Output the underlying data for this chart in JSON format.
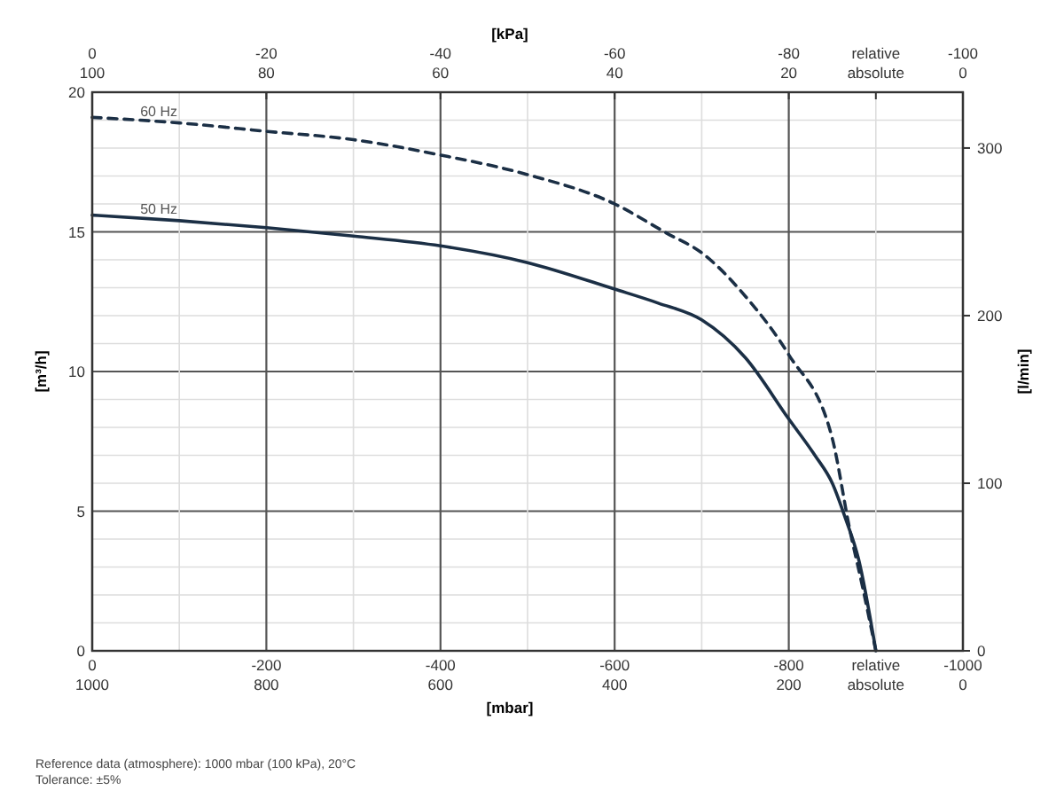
{
  "chart_data": {
    "type": "line",
    "xlabel": "[mbar]",
    "x2label": "[kPa]",
    "ylabel": "[m³/h]",
    "y2label": "[l/min]",
    "xlim": [
      0,
      -1000
    ],
    "xticks": [
      0,
      {
        "value": -100,
        "label": null
      },
      -200,
      {
        "value": -300,
        "label": null
      },
      -400,
      {
        "value": -500,
        "label": null
      },
      -600,
      {
        "value": -700,
        "label": null
      },
      -800,
      {
        "value": -900,
        "label": "relative"
      },
      -1000
    ],
    "x2lim": [
      0,
      -100
    ],
    "x2ticks": [
      0,
      -20,
      -40,
      -60,
      -80,
      {
        "value": -90,
        "label": "relative"
      },
      -100
    ],
    "ylim": [
      0,
      20
    ],
    "yticks": [
      0,
      {
        "value": 1,
        "label": null
      },
      {
        "value": 2,
        "label": null
      },
      {
        "value": 3,
        "label": null
      },
      {
        "value": 4,
        "label": null
      },
      5,
      {
        "value": 6,
        "label": null
      },
      {
        "value": 7,
        "label": null
      },
      {
        "value": 8,
        "label": null
      },
      {
        "value": 9,
        "label": null
      },
      10,
      {
        "value": 11,
        "label": null
      },
      {
        "value": 12,
        "label": null
      },
      {
        "value": 13,
        "label": null
      },
      {
        "value": 14,
        "label": null
      },
      15,
      {
        "value": 16,
        "label": null
      },
      {
        "value": 17,
        "label": null
      },
      {
        "value": 18,
        "label": null
      },
      {
        "value": 19,
        "label": null
      },
      20
    ],
    "y2lim": [
      0,
      333.3
    ],
    "y2ticks": [
      0,
      100,
      200,
      300
    ],
    "grid": true,
    "marker": "none",
    "annotations": [
      "1000",
      "800",
      "600",
      "400",
      "200",
      "absolute",
      "0",
      "100",
      "80",
      "60",
      "40",
      "20",
      "absolute",
      "0",
      "Reference data (atmosphere): 1000 mbar (100 kPa), 20°C",
      "Tolerance: ±5%"
    ],
    "series": [
      {
        "name": "60 Hz",
        "color": "#1b2f45",
        "line_style": "dashed",
        "x": [
          0,
          -100,
          -200,
          -300,
          -400,
          -500,
          -600,
          -660,
          -700,
          -750,
          -800,
          -850,
          -870,
          -885,
          -900
        ],
        "values": [
          19.1,
          18.9,
          18.6,
          18.3,
          17.75,
          17.05,
          16,
          14.95,
          14.25,
          12.7,
          10.6,
          7.6,
          4.35,
          2.25,
          0
        ]
      },
      {
        "name": "50 Hz",
        "color": "#1b2f45",
        "line_style": "solid",
        "x": [
          0,
          -100,
          -200,
          -300,
          -400,
          -500,
          -600,
          -650,
          -700,
          -750,
          -800,
          -830,
          -850,
          -865,
          -880,
          -900
        ],
        "values": [
          15.6,
          15.4,
          15.15,
          14.85,
          14.5,
          13.9,
          12.95,
          12.45,
          11.85,
          10.5,
          8.3,
          7,
          6,
          4.75,
          3.3,
          0
        ]
      }
    ]
  }
}
